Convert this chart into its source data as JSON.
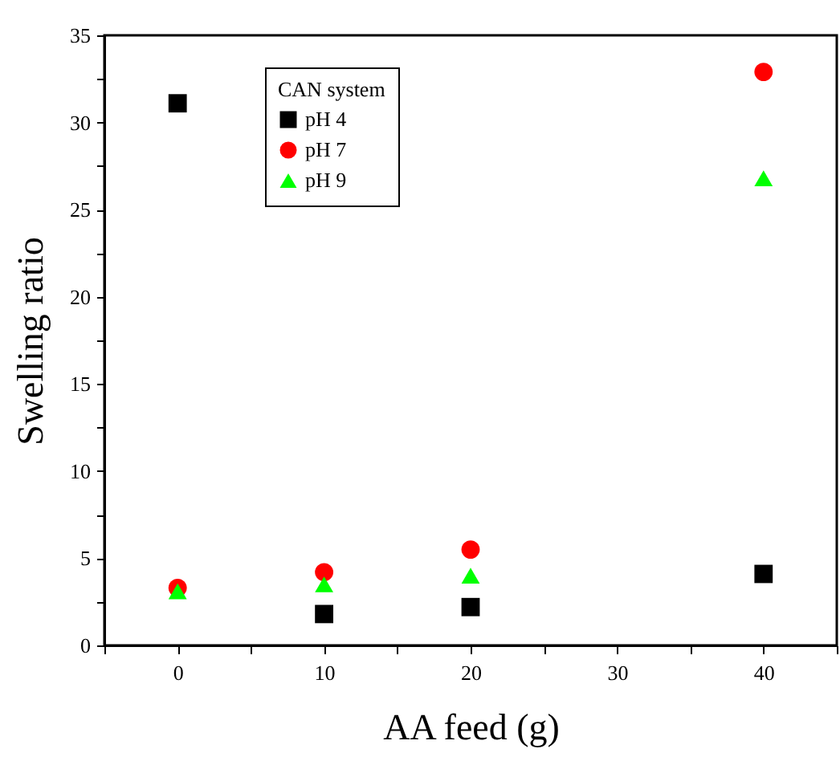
{
  "chart_data": {
    "type": "scatter",
    "xlabel": "AA feed (g)",
    "ylabel": "Swelling ratio",
    "legend_title": "CAN system",
    "x": [
      0,
      10,
      20,
      40
    ],
    "series": [
      {
        "name": "pH 4",
        "color": "#000000",
        "marker": "square",
        "values": [
          31.1,
          1.8,
          2.2,
          4.1
        ]
      },
      {
        "name": "pH 7",
        "color": "#ff0000",
        "marker": "circle",
        "values": [
          3.3,
          4.2,
          5.5,
          32.9
        ]
      },
      {
        "name": "pH 9",
        "color": "#00ff00",
        "marker": "triangle",
        "values": [
          3.1,
          3.5,
          4.0,
          26.8
        ]
      }
    ],
    "xlim": [
      -5,
      45
    ],
    "xticks": [
      {
        "value": -5,
        "label": null
      },
      0,
      {
        "value": 5,
        "label": null
      },
      10,
      {
        "value": 15,
        "label": null
      },
      20,
      {
        "value": 25,
        "label": null
      },
      30,
      {
        "value": 35,
        "label": null
      },
      40,
      {
        "value": 45,
        "label": null
      }
    ],
    "ylim": [
      0,
      35
    ],
    "yticks": [
      0,
      {
        "value": 2.5,
        "label": null
      },
      5,
      {
        "value": 7.5,
        "label": null
      },
      10,
      {
        "value": 12.5,
        "label": null
      },
      15,
      {
        "value": 17.5,
        "label": null
      },
      20,
      {
        "value": 22.5,
        "label": null
      },
      25,
      {
        "value": 27.5,
        "label": null
      },
      30,
      {
        "value": 32.5,
        "label": null
      },
      35
    ],
    "grid": false,
    "legend": "top left"
  }
}
